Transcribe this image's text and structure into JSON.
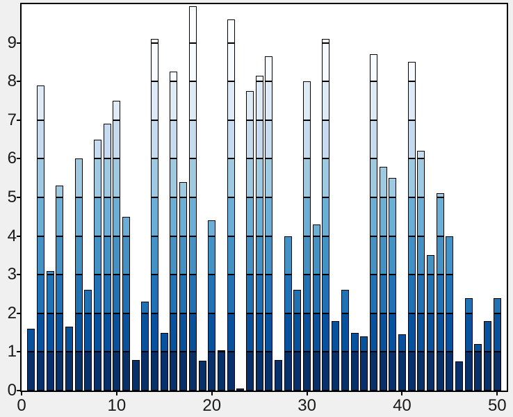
{
  "chart_data": {
    "type": "bar",
    "title": "",
    "xlabel": "",
    "ylabel": "",
    "x": [
      1,
      2,
      3,
      4,
      5,
      6,
      7,
      8,
      9,
      10,
      11,
      12,
      13,
      14,
      15,
      16,
      17,
      18,
      19,
      20,
      21,
      22,
      23,
      24,
      25,
      26,
      27,
      28,
      29,
      30,
      31,
      32,
      33,
      34,
      35,
      36,
      37,
      38,
      39,
      40,
      41,
      42,
      43,
      44,
      45,
      46,
      47,
      48,
      49,
      50
    ],
    "values": [
      1.6,
      7.9,
      3.1,
      5.3,
      1.65,
      6.0,
      2.6,
      6.5,
      6.9,
      7.5,
      4.5,
      0.8,
      2.3,
      9.1,
      1.5,
      8.25,
      5.4,
      9.95,
      0.78,
      4.4,
      1.05,
      9.6,
      0.06,
      7.75,
      8.15,
      8.65,
      0.8,
      4.0,
      2.6,
      8.0,
      4.3,
      9.1,
      1.8,
      2.6,
      1.5,
      1.4,
      8.7,
      5.8,
      5.5,
      1.45,
      8.5,
      6.2,
      3.5,
      5.1,
      4.0,
      0.75,
      2.4,
      1.2,
      1.8,
      2.4
    ],
    "xlim": [
      0,
      51
    ],
    "ylim": [
      0,
      10
    ],
    "xticks": [
      0,
      10,
      20,
      30,
      40,
      50
    ],
    "yticks": [
      0,
      1,
      2,
      3,
      4,
      5,
      6,
      7,
      8,
      9
    ],
    "grid": false,
    "legend": null,
    "bar_width_fraction": 0.8,
    "bar_edge_color": "#000000",
    "segment_colors_bottom_to_top": [
      "#08306b",
      "#08519c",
      "#2171b5",
      "#4292c6",
      "#6baed6",
      "#9ecae1",
      "#c6dbef",
      "#deebf7",
      "#f7fbff",
      "#fcfdff"
    ],
    "colors": {
      "figure_bg": "#f0f0f0",
      "plot_bg": "#ffffff",
      "axis": "#000000",
      "tick_label": "#1a1a1a"
    }
  }
}
